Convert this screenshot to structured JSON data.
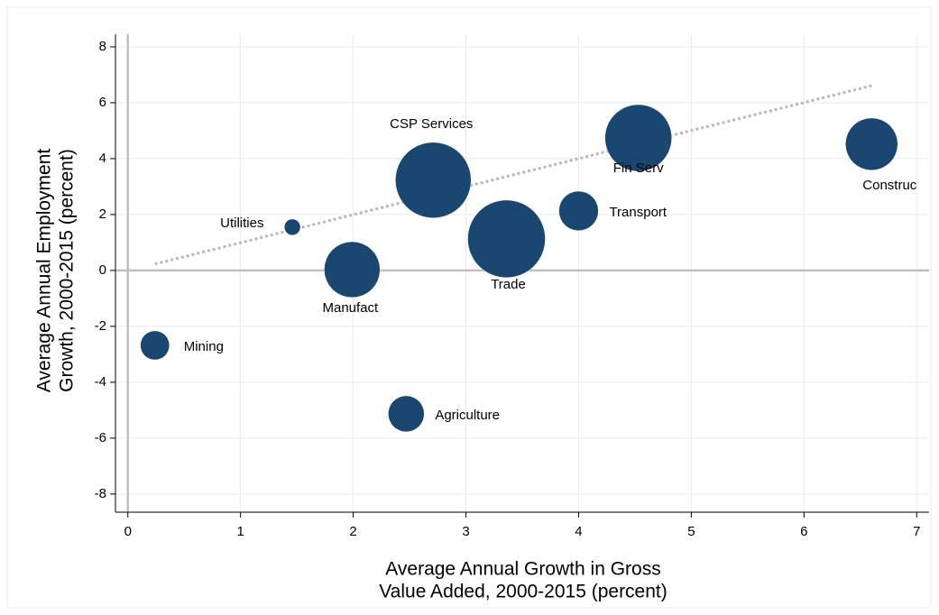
{
  "chart_data": {
    "type": "bubble",
    "x_title": [
      "Average Annual Growth in Gross",
      "Value Added, 2000-2015 (percent)"
    ],
    "y_title": [
      "Average Annual Employment",
      "Growth, 2000-2015 (percent)"
    ],
    "labels": [
      "Mining",
      "Utilities",
      "Manufact",
      "Agriculture",
      "CSP Services",
      "Trade",
      "Transport",
      "Fin Serv",
      "Construc"
    ],
    "x": [
      0.24,
      1.46,
      1.99,
      2.47,
      2.71,
      3.36,
      4.0,
      4.53,
      6.6
    ],
    "y": [
      -2.68,
      1.55,
      0.03,
      -5.13,
      3.23,
      1.13,
      2.13,
      4.74,
      4.52
    ],
    "sizes": [
      26,
      8,
      96,
      40,
      176,
      185,
      48,
      137,
      84
    ],
    "color": "#1a476f",
    "trendline": {
      "x": [
        0.24,
        6.6
      ],
      "y": [
        0.23,
        6.61
      ],
      "color": "#b8b8b8"
    },
    "xlim": [
      -0.11,
      7.11
    ],
    "ylim": [
      -8.65,
      8.45
    ],
    "xticks": [
      0,
      1,
      2,
      3,
      4,
      5,
      6,
      7
    ],
    "yticks": [
      -8,
      -6,
      -4,
      -2,
      0,
      2,
      4,
      6,
      8
    ],
    "grid": true
  }
}
